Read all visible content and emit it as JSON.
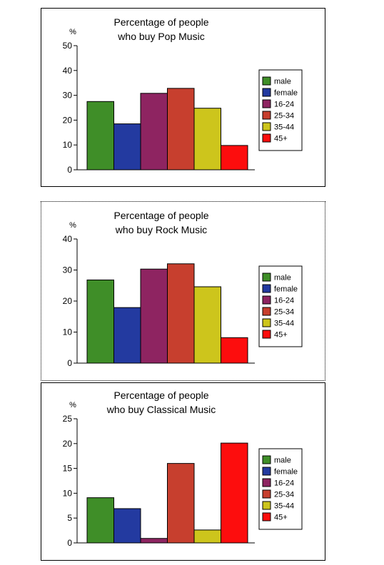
{
  "chart_data": [
    {
      "type": "bar",
      "title": [
        "Percentage of people",
        "who buy Pop Music"
      ],
      "ylabel": "%",
      "ylim": [
        0,
        50
      ],
      "yticks": [
        0,
        10,
        20,
        30,
        40,
        50
      ],
      "categories": [
        "male",
        "female",
        "16-24",
        "25-34",
        "35-44",
        "45+"
      ],
      "values": [
        27.5,
        18.5,
        30.8,
        32.8,
        24.8,
        9.8
      ],
      "colors": [
        "#3f8e28",
        "#233aa0",
        "#8e2461",
        "#c73f2e",
        "#cdc51c",
        "#fd0d0d"
      ],
      "legend": [
        "male",
        "female",
        "16-24",
        "25-34",
        "35-44",
        "45+"
      ],
      "legend_position": "right"
    },
    {
      "type": "bar",
      "title": [
        "Percentage of people",
        "who buy Rock Music"
      ],
      "ylabel": "%",
      "ylim": [
        0,
        40
      ],
      "yticks": [
        0,
        10,
        20,
        30,
        40
      ],
      "categories": [
        "male",
        "female",
        "16-24",
        "25-34",
        "35-44",
        "45+"
      ],
      "values": [
        26.8,
        17.9,
        30.3,
        32,
        24.6,
        8.2
      ],
      "colors": [
        "#3f8e28",
        "#233aa0",
        "#8e2461",
        "#c73f2e",
        "#cdc51c",
        "#fd0d0d"
      ],
      "legend": [
        "male",
        "female",
        "16-24",
        "25-34",
        "35-44",
        "45+"
      ],
      "legend_position": "right"
    },
    {
      "type": "bar",
      "title": [
        "Percentage of people",
        "who buy Classical Music"
      ],
      "ylabel": "%",
      "ylim": [
        0,
        25
      ],
      "yticks": [
        0,
        5,
        10,
        15,
        20,
        25
      ],
      "categories": [
        "male",
        "female",
        "16-24",
        "25-34",
        "35-44",
        "45+"
      ],
      "values": [
        9.1,
        6.9,
        0.9,
        16.0,
        2.6,
        20.1
      ],
      "colors": [
        "#3f8e28",
        "#233aa0",
        "#8e2461",
        "#c73f2e",
        "#cdc51c",
        "#fd0d0d"
      ],
      "legend": [
        "male",
        "female",
        "16-24",
        "25-34",
        "35-44",
        "45+"
      ],
      "legend_position": "right"
    }
  ]
}
